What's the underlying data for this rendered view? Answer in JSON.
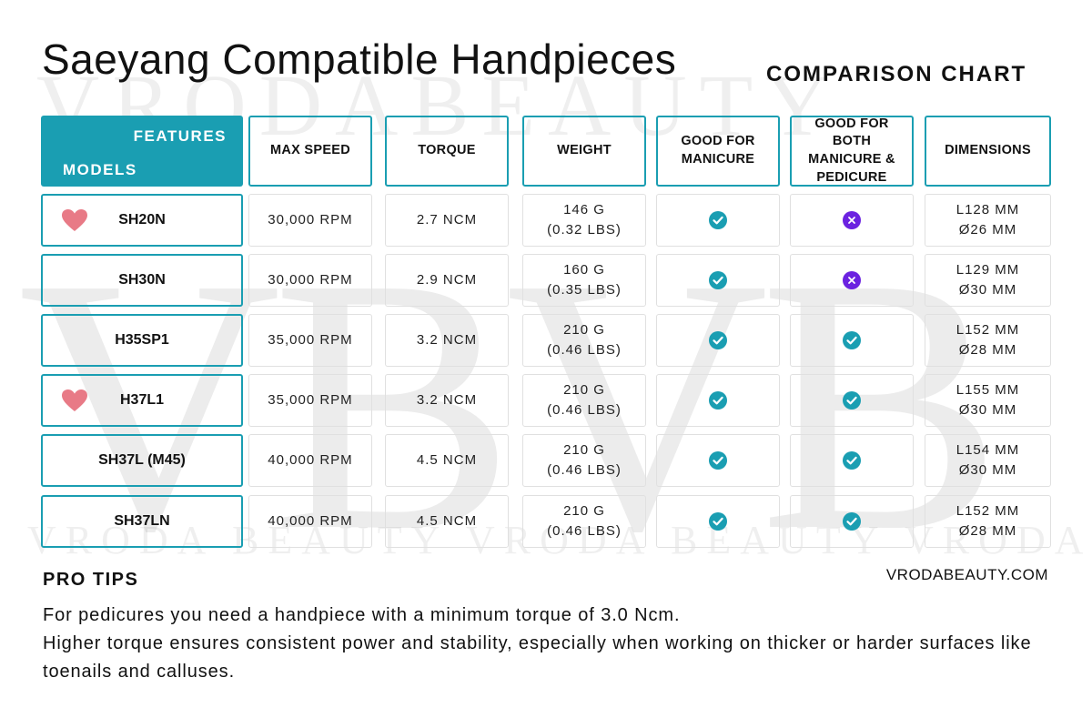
{
  "watermark": {
    "top": "VRODABEAUTY",
    "middle": "VBVB",
    "bottom": "VRODA BEAUTY  VRODA BEAUTY  VRODA BEAUTY"
  },
  "title": "Saeyang Compatible Handpieces",
  "subtitle": "COMPARISON CHART",
  "colors": {
    "accent": "#1a9eb2",
    "check": "#1a9eb2",
    "cross": "#6b22e0",
    "heart": "#e87a86"
  },
  "table": {
    "header": {
      "features_label": "FEATURES",
      "models_label": "MODELS",
      "columns": [
        "MAX SPEED",
        "TORQUE",
        "WEIGHT",
        "GOOD FOR MANICURE",
        "GOOD FOR BOTH MANICURE & PEDICURE",
        "DIMENSIONS"
      ]
    },
    "rows": [
      {
        "model": "SH20N",
        "favorite": true,
        "speed": "30,000 RPM",
        "torque": "2.7 NCM",
        "weight_g": "146 G",
        "weight_lbs": "(0.32 LBS)",
        "manicure": "check-icon",
        "both": "cross-icon",
        "dim_l": "L128 MM",
        "dim_d": "Ø26 MM"
      },
      {
        "model": "SH30N",
        "favorite": false,
        "speed": "30,000 RPM",
        "torque": "2.9 NCM",
        "weight_g": "160 G",
        "weight_lbs": "(0.35 LBS)",
        "manicure": "check-icon",
        "both": "cross-icon",
        "dim_l": "L129 MM",
        "dim_d": "Ø30 MM"
      },
      {
        "model": "H35SP1",
        "favorite": false,
        "speed": "35,000 RPM",
        "torque": "3.2 NCM",
        "weight_g": "210 G",
        "weight_lbs": "(0.46 LBS)",
        "manicure": "check-icon",
        "both": "check-icon",
        "dim_l": "L152 MM",
        "dim_d": "Ø28 MM"
      },
      {
        "model": "H37L1",
        "favorite": true,
        "speed": "35,000 RPM",
        "torque": "3.2 NCM",
        "weight_g": "210 G",
        "weight_lbs": "(0.46 LBS)",
        "manicure": "check-icon",
        "both": "check-icon",
        "dim_l": "L155 MM",
        "dim_d": "Ø30 MM"
      },
      {
        "model": "SH37L (M45)",
        "favorite": false,
        "speed": "40,000 RPM",
        "torque": "4.5 NCM",
        "weight_g": "210 G",
        "weight_lbs": "(0.46 LBS)",
        "manicure": "check-icon",
        "both": "check-icon",
        "dim_l": "L154 MM",
        "dim_d": "Ø30 MM"
      },
      {
        "model": "SH37LN",
        "favorite": false,
        "speed": "40,000 RPM",
        "torque": "4.5 NCM",
        "weight_g": "210 G",
        "weight_lbs": "(0.46 LBS)",
        "manicure": "check-icon",
        "both": "check-icon",
        "dim_l": "L152 MM",
        "dim_d": "Ø28 MM"
      }
    ]
  },
  "pro_tips": {
    "heading": "PRO TIPS",
    "website": "VRODABEAUTY.COM",
    "lines": [
      "For pedicures you need a handpiece with a minimum torque of 3.0 Ncm.",
      "Higher torque ensures consistent power and stability, especially when working on thicker or harder surfaces like toenails and calluses."
    ]
  }
}
